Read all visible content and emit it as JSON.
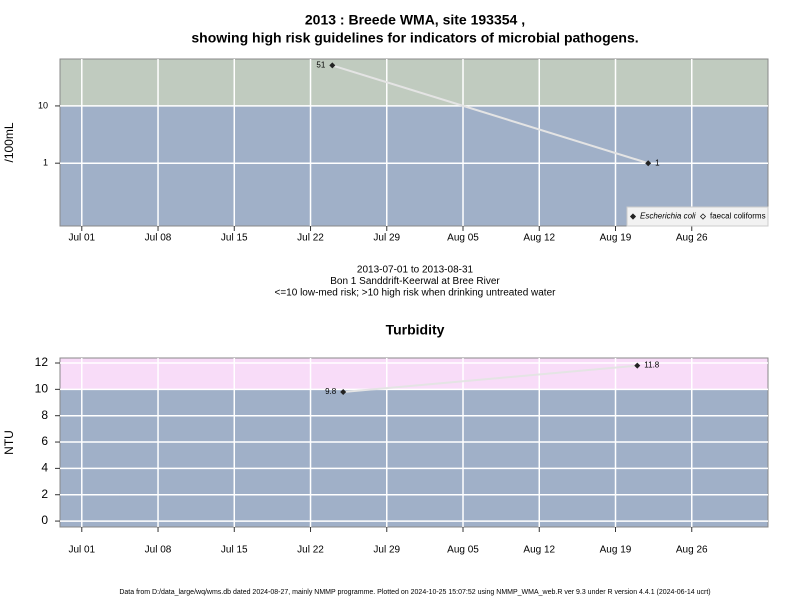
{
  "chart_data": [
    {
      "type": "line",
      "title": [
        "2013 : Breede WMA, site 193354 ,",
        "showing high risk guidelines for indicators of microbial pathogens."
      ],
      "ylabel": "/100mL",
      "log_y": true,
      "ylim": [
        0.08,
        66
      ],
      "yticks": [
        1,
        10
      ],
      "xlim": [
        "Jun 29",
        "Sep 02"
      ],
      "xticks": [
        "Jul 01",
        "Jul 08",
        "Jul 15",
        "Jul 22",
        "Jul 29",
        "Aug 05",
        "Aug 12",
        "Aug 19",
        "Aug 26"
      ],
      "threshold": 10,
      "above_color": "#c0cbbf",
      "below_color": "#a0b0c8",
      "grid": true,
      "legend": "bottom right",
      "x": [
        "Jul 24",
        "Aug 22"
      ],
      "series": [
        {
          "name": "Escherichia coli",
          "color": "#222222",
          "values": [
            51,
            1
          ]
        },
        {
          "name": "faecal coliforms",
          "color": "#222222",
          "values": [
            null,
            null
          ]
        }
      ],
      "caption": [
        "2013-07-01 to 2013-08-31",
        "Bon 1 Sanddrift-Keerwal at Bree River",
        "<=10 low-med risk; >10 high risk when drinking untreated water"
      ]
    },
    {
      "type": "line",
      "title": [
        "Turbidity"
      ],
      "ylabel": "NTU",
      "log_y": false,
      "ylim": [
        -0.45,
        12.38
      ],
      "yticks": [
        0,
        2,
        4,
        6,
        8,
        10,
        12
      ],
      "xlim": [
        "Jun 29",
        "Sep 02"
      ],
      "xticks": [
        "Jul 01",
        "Jul 08",
        "Jul 15",
        "Jul 22",
        "Jul 29",
        "Aug 05",
        "Aug 12",
        "Aug 19",
        "Aug 26"
      ],
      "threshold": 10,
      "above_color": "#f8dcf8",
      "below_color": "#a0b0c8",
      "grid": true,
      "x": [
        "Jul 25",
        "Aug 21"
      ],
      "series": [
        {
          "name": "Turbidity",
          "color": "#222222",
          "values": [
            9.8,
            11.8
          ]
        }
      ]
    }
  ],
  "footer": "Data from D:/data_large/wq/wms.db dated 2024-08-27, mainly NMMP programme. Plotted on 2024-10-25 15:07:52 using NMMP_WMA_web.R ver 9.3 under R version 4.4.1 (2024-06-14 ucrt)"
}
